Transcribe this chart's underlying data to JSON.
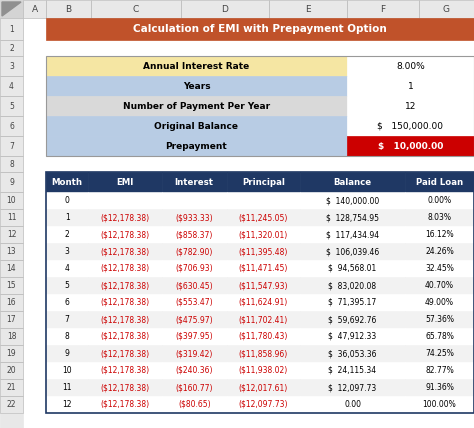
{
  "title": "Calculation of EMI with Prepayment Option",
  "title_bg": "#C0522A",
  "title_color": "#FFFFFF",
  "info_labels": [
    "Annual Interest Rate",
    "Years",
    "Number of Payment Per Year",
    "Original Balance",
    "Prepayment"
  ],
  "info_values": [
    "8.00%",
    "1",
    "12",
    "$   150,000.00",
    "$   10,000.00"
  ],
  "info_label_colors": [
    "#F5E6A3",
    "#B8CCE4",
    "#D9D9D9",
    "#B8CCE4",
    "#B8CCE4"
  ],
  "info_value_colors": [
    "#FFFFFF",
    "#FFFFFF",
    "#FFFFFF",
    "#FFFFFF",
    "#CC0000"
  ],
  "info_value_text_colors": [
    "#000000",
    "#000000",
    "#000000",
    "#000000",
    "#FFFFFF"
  ],
  "col_headers": [
    "Month",
    "EMI",
    "Interest",
    "Principal",
    "Balance",
    "Paid Loan"
  ],
  "col_header_bg": "#1F3864",
  "col_header_color": "#FFFFFF",
  "table_data": [
    [
      "0",
      "",
      "",
      "",
      "$  140,000.00",
      "0.00%"
    ],
    [
      "1",
      "($12,178.38)",
      "($933.33)",
      "($11,245.05)",
      "$  128,754.95",
      "8.03%"
    ],
    [
      "2",
      "($12,178.38)",
      "($858.37)",
      "($11,320.01)",
      "$  117,434.94",
      "16.12%"
    ],
    [
      "3",
      "($12,178.38)",
      "($782.90)",
      "($11,395.48)",
      "$  106,039.46",
      "24.26%"
    ],
    [
      "4",
      "($12,178.38)",
      "($706.93)",
      "($11,471.45)",
      "$  94,568.01",
      "32.45%"
    ],
    [
      "5",
      "($12,178.38)",
      "($630.45)",
      "($11,547.93)",
      "$  83,020.08",
      "40.70%"
    ],
    [
      "6",
      "($12,178.38)",
      "($553.47)",
      "($11,624.91)",
      "$  71,395.17",
      "49.00%"
    ],
    [
      "7",
      "($12,178.38)",
      "($475.97)",
      "($11,702.41)",
      "$  59,692.76",
      "57.36%"
    ],
    [
      "8",
      "($12,178.38)",
      "($397.95)",
      "($11,780.43)",
      "$  47,912.33",
      "65.78%"
    ],
    [
      "9",
      "($12,178.38)",
      "($319.42)",
      "($11,858.96)",
      "$  36,053.36",
      "74.25%"
    ],
    [
      "10",
      "($12,178.38)",
      "($240.36)",
      "($11,938.02)",
      "$  24,115.34",
      "82.77%"
    ],
    [
      "11",
      "($12,178.38)",
      "($160.77)",
      "($12,017.61)",
      "$  12,097.73",
      "91.36%"
    ],
    [
      "12",
      "($12,178.38)",
      "($80.65)",
      "($12,097.73)",
      "0.00",
      "100.00%"
    ]
  ],
  "row_colors": [
    "#FFFFFF",
    "#F2F2F2"
  ],
  "red_text_cols": [
    1,
    2,
    3
  ],
  "excel_col_letters": [
    "A",
    "B",
    "C",
    "D",
    "E",
    "F",
    "G"
  ],
  "excel_row_nums": [
    1,
    2,
    3,
    4,
    5,
    6,
    7,
    8,
    9,
    10,
    11,
    12,
    13,
    14,
    15,
    16,
    17,
    18,
    19,
    20,
    21,
    22
  ],
  "figsize": [
    4.74,
    4.28
  ],
  "dpi": 100
}
